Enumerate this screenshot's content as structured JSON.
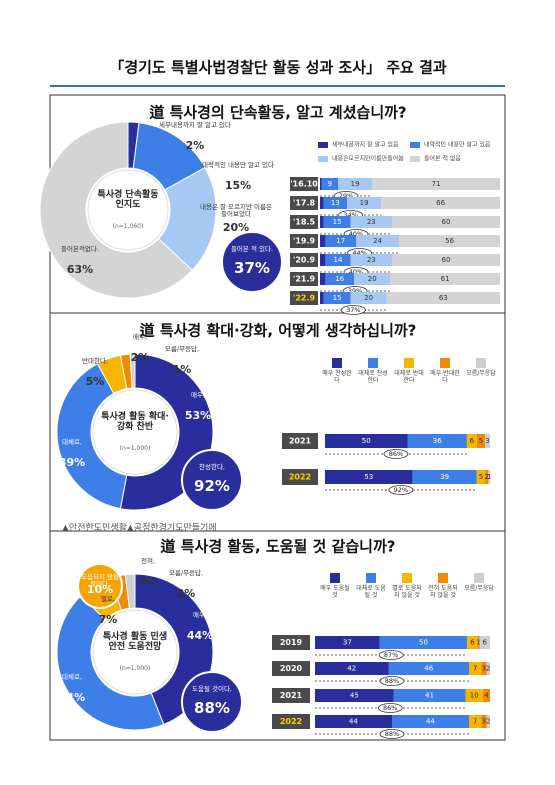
{
  "header": {
    "title": "「경기도 특별사법경찰단 활동 성과 조사」 주요 결과"
  },
  "caption": "▲안전한도민생활▲공정한경기도만들기에",
  "chart_data": [
    {
      "type": "pie",
      "title": "道 특사경의 단속활동, 알고 계셨습니까?",
      "categories": [
        "세부내용까지 잘 알고 있다",
        "대략적인 내용만 알고 있다",
        "내용은 잘 모르지만 이름은 들어보았다",
        "들어본적없다."
      ],
      "values": [
        2,
        15,
        20,
        63
      ],
      "value_labels": [
        "2%",
        "15%",
        "20%",
        "63%"
      ],
      "colors": [
        "#2a2d9c",
        "#3d7fe6",
        "#a8c8f4",
        "#d4d4d4"
      ],
      "center_label": "특사경 단속활동 인지도",
      "sample": "(n=1,060)",
      "summaries": [
        {
          "label": "들어본 적 있다.",
          "value": 37,
          "value_label": "37%",
          "color": "#2a2d9c"
        }
      ]
    },
    {
      "type": "stacked_bar",
      "categories": [
        "'16.10",
        "'17.8",
        "'18.5",
        "'19.9",
        "'20.9",
        "'21.9",
        "'22.9"
      ],
      "xlim": [
        0,
        100
      ],
      "series": [
        {
          "name": "세부내용까지 잘 알고 있음",
          "color": "#2a2d9c",
          "values": [
            1,
            2,
            2,
            3,
            3,
            3,
            2
          ]
        },
        {
          "name": "내략적인 내용만 알고 있음",
          "color": "#3d7fe6",
          "values": [
            9,
            13,
            15,
            17,
            14,
            16,
            15
          ]
        },
        {
          "name": "내용은모르지만이름만들어봄",
          "color": "#a8c8f4",
          "values": [
            19,
            19,
            23,
            24,
            23,
            20,
            20
          ]
        },
        {
          "name": "들어본 적 없음",
          "color": "#d4d4d4",
          "values": [
            71,
            66,
            60,
            56,
            60,
            61,
            63
          ]
        }
      ],
      "highlights": [
        {
          "value": 29,
          "label": "29%"
        },
        {
          "value": 34,
          "label": "34%"
        },
        {
          "value": 40,
          "label": "40%"
        },
        {
          "value": 44,
          "label": "44%"
        },
        {
          "value": 40,
          "label": "40%"
        },
        {
          "value": 39,
          "label": "39%"
        },
        {
          "value": 37,
          "label": "37%"
        }
      ]
    },
    {
      "type": "pie",
      "title": "道 특사경 확대·강화, 어떻게 생각하십니까?",
      "categories": [
        "매우,",
        "대체로,",
        "반대한다,",
        "매우,",
        "모름/무응답,"
      ],
      "values": [
        53,
        39,
        5,
        2,
        1
      ],
      "value_labels": [
        "53%",
        "39%",
        "5%",
        "2%",
        "1%"
      ],
      "colors": [
        "#2a2d9c",
        "#3d7fe6",
        "#f6b600",
        "#f08a00",
        "#cfcfcf"
      ],
      "center_label": "특사경 활동 확대·강화 찬반",
      "sample": "(n=1,000)",
      "summaries": [
        {
          "label": "찬성한다,",
          "value": 92,
          "value_label": "92%",
          "color": "#2a2d9c"
        }
      ]
    },
    {
      "type": "stacked_bar",
      "categories": [
        "2021",
        "2022"
      ],
      "xlim": [
        0,
        100
      ],
      "series": [
        {
          "name": "매우 찬성한다",
          "color": "#2a2d9c",
          "values": [
            50,
            53
          ]
        },
        {
          "name": "대체로 찬성한다",
          "color": "#3d7fe6",
          "values": [
            36,
            39
          ]
        },
        {
          "name": "대체로 반대한다",
          "color": "#f6b600",
          "values": [
            6,
            5
          ]
        },
        {
          "name": "매우 반대한다",
          "color": "#f08a00",
          "values": [
            5,
            2
          ]
        },
        {
          "name": "모름/무응답",
          "color": "#cfcfcf",
          "values": [
            3,
            1
          ]
        }
      ],
      "highlights": [
        {
          "value": 86,
          "label": "86%"
        },
        {
          "value": 92,
          "label": "92%"
        }
      ]
    },
    {
      "type": "pie",
      "title": "道 특사경 활동, 도움될 것 같습니까?",
      "categories": [
        "매우,",
        "대체로,",
        "별로,",
        "전혀,",
        "모름/무응답,"
      ],
      "values": [
        44,
        44,
        7,
        3,
        2
      ],
      "value_labels": [
        "44%",
        "44%",
        "7%",
        "3%",
        "2%"
      ],
      "colors": [
        "#2a2d9c",
        "#3d7fe6",
        "#f6b600",
        "#f08a00",
        "#cfcfcf"
      ],
      "center_label": "특사경 활동 민생안전 도움전망",
      "sample": "(n=1,000)",
      "summaries": [
        {
          "label": "도움될 것이다,",
          "value": 88,
          "value_label": "88%",
          "color": "#2a2d9c"
        },
        {
          "label": "도움되지 않을 것이다,",
          "value": 10,
          "value_label": "10%",
          "color": "#f6a400"
        }
      ]
    },
    {
      "type": "stacked_bar",
      "categories": [
        "2019",
        "2020",
        "2021",
        "2022"
      ],
      "xlim": [
        0,
        100
      ],
      "series": [
        {
          "name": "매우 도움될 것",
          "color": "#2a2d9c",
          "values": [
            37,
            42,
            45,
            44
          ]
        },
        {
          "name": "대체로 도움될 것",
          "color": "#3d7fe6",
          "values": [
            50,
            46,
            41,
            44
          ]
        },
        {
          "name": "별로 도움되지 않을 것",
          "color": "#f6b600",
          "values": [
            6,
            7,
            10,
            7
          ]
        },
        {
          "name": "전혀 도움되지 않을 것",
          "color": "#f08a00",
          "values": [
            1,
            3,
            4,
            3
          ]
        },
        {
          "name": "모름/무응답",
          "color": "#cfcfcf",
          "values": [
            6,
            2,
            0,
            2
          ]
        }
      ],
      "highlights": [
        {
          "value": 87,
          "label": "87%"
        },
        {
          "value": 88,
          "label": "88%"
        },
        {
          "value": 86,
          "label": "86%"
        },
        {
          "value": 88,
          "label": "88%"
        }
      ]
    }
  ]
}
